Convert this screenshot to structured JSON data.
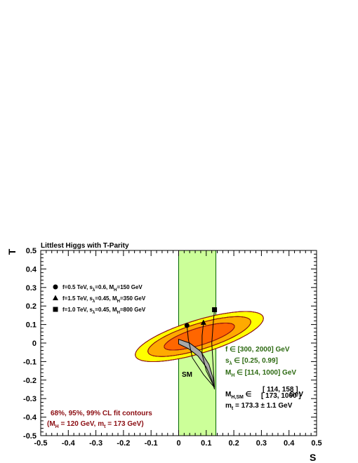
{
  "chart_data": {
    "type": "contour",
    "title": "Littlest Higgs with T-Parity",
    "xlabel": "S",
    "ylabel": "T",
    "xlim": [
      -0.5,
      0.5
    ],
    "ylim": [
      -0.5,
      0.5
    ],
    "x_ticks": [
      "-0.5",
      "-0.4",
      "-0.3",
      "-0.2",
      "-0.1",
      "0",
      "0.1",
      "0.2",
      "0.3",
      "0.4",
      "0.5"
    ],
    "y_ticks": [
      "-0.5",
      "-0.4",
      "-0.3",
      "-0.2",
      "-0.1",
      "0",
      "0.1",
      "0.2",
      "0.3",
      "0.4",
      "0.5"
    ],
    "grid": false,
    "fit_contours": {
      "center": [
        0.075,
        0.035
      ],
      "angle_deg": 26,
      "levels": [
        {
          "level": "99%",
          "semi_axes": [
            0.255,
            0.085
          ],
          "color": "#ffff00"
        },
        {
          "level": "95%",
          "semi_axes": [
            0.205,
            0.066
          ],
          "color": "#ffaa00"
        },
        {
          "level": "68%",
          "semi_axes": [
            0.14,
            0.044
          ],
          "color": "#ff6600"
        }
      ],
      "contour_label": "68%, 95%, 99% CL fit contours",
      "contour_label_line2": "(M_H = 120 GeV, m_t = 173 GeV)"
    },
    "model_band": {
      "x_range": [
        0.0,
        0.135
      ],
      "color": "#ccff99"
    },
    "sm_band": {
      "label": "SM",
      "upper_edge": [
        [
          0.0,
          0.02
        ],
        [
          0.04,
          0.0
        ],
        [
          0.08,
          -0.045
        ],
        [
          0.11,
          -0.115
        ],
        [
          0.125,
          -0.19
        ],
        [
          0.13,
          -0.25
        ]
      ],
      "lower_edge": [
        [
          0.0,
          -0.005
        ],
        [
          0.035,
          -0.03
        ],
        [
          0.07,
          -0.07
        ],
        [
          0.1,
          -0.13
        ],
        [
          0.12,
          -0.2
        ],
        [
          0.13,
          -0.25
        ]
      ]
    },
    "series": [
      {
        "name": "f=0.5 TeV, s_λ=0.6, M_H=150 GeV",
        "marker": "circle",
        "point": [
          0.03,
          0.095
        ],
        "curve": [
          [
            0.13,
            -0.24
          ],
          [
            0.09,
            -0.17
          ],
          [
            0.05,
            -0.08
          ],
          [
            0.035,
            0.02
          ],
          [
            0.03,
            0.095
          ]
        ]
      },
      {
        "name": "f=1.5 TeV, s_λ=0.45, M_H=350 GeV",
        "marker": "triangle",
        "point": [
          0.09,
          0.11
        ],
        "curve": [
          [
            0.13,
            -0.24
          ],
          [
            0.1,
            -0.15
          ],
          [
            0.085,
            -0.06
          ],
          [
            0.085,
            0.04
          ],
          [
            0.09,
            0.11
          ]
        ]
      },
      {
        "name": "f=1.0 TeV, s_λ=0.45, M_H=800 GeV",
        "marker": "square",
        "point": [
          0.13,
          0.18
        ],
        "curve": [
          [
            0.13,
            -0.24
          ],
          [
            0.125,
            -0.12
          ],
          [
            0.12,
            0.0
          ],
          [
            0.125,
            0.1
          ],
          [
            0.13,
            0.18
          ]
        ]
      }
    ],
    "legend": [
      {
        "marker": "circle",
        "label": "f=0.5 TeV, s",
        "sub1": "λ",
        "mid": "=0.6, M",
        "sub2": "H",
        "tail": "=150 GeV"
      },
      {
        "marker": "triangle",
        "label": "f=1.5 TeV, s",
        "sub1": "λ",
        "mid": "=0.45, M",
        "sub2": "H",
        "tail": "=350 GeV"
      },
      {
        "marker": "square",
        "label": "f=1.0 TeV, s",
        "sub1": "λ",
        "mid": "=0.45, M",
        "sub2": "H",
        "tail": "=800 GeV"
      }
    ],
    "legend_placement": "top-left",
    "annotations": {
      "f_range": "f ∈ [300, 2000] GeV",
      "s_range_pre": "s",
      "s_range_sub": "λ",
      "s_range_post": " ∈ [0.25, 0.99]",
      "mh_range_pre": "M",
      "mh_range_sub": "H",
      "mh_range_post": " ∈ [114, 1000] GeV",
      "mhsm_pre": "M",
      "mhsm_sub": "H,SM",
      "mhsm_mid": " ∈",
      "mhsm_frac_top": "[ 114, 158 ]",
      "mhsm_frac_bottom": "[ 173, 1000 ]",
      "mhsm_post": "GeV",
      "mt_pre": "m",
      "mt_sub": "t",
      "mt_post": " = 173.3 ± 1.1 GeV",
      "cl_line1": "68%, 95%, 99% CL fit contours",
      "cl_line2_a": "(M",
      "cl_line2_sub1": "H",
      "cl_line2_b": " = 120 GeV, m",
      "cl_line2_sub2": "t",
      "cl_line2_c": " = 173 GeV)"
    },
    "colors": {
      "yellow": "#ffff00",
      "orange": "#ffaa00",
      "red_orange": "#ff6600",
      "green_band": "#ccff99",
      "contour_line": "#a01010",
      "sm_band": "#a8a8a8",
      "annotation_green": "#2d6a12",
      "annotation_red": "#8b0d12"
    }
  }
}
